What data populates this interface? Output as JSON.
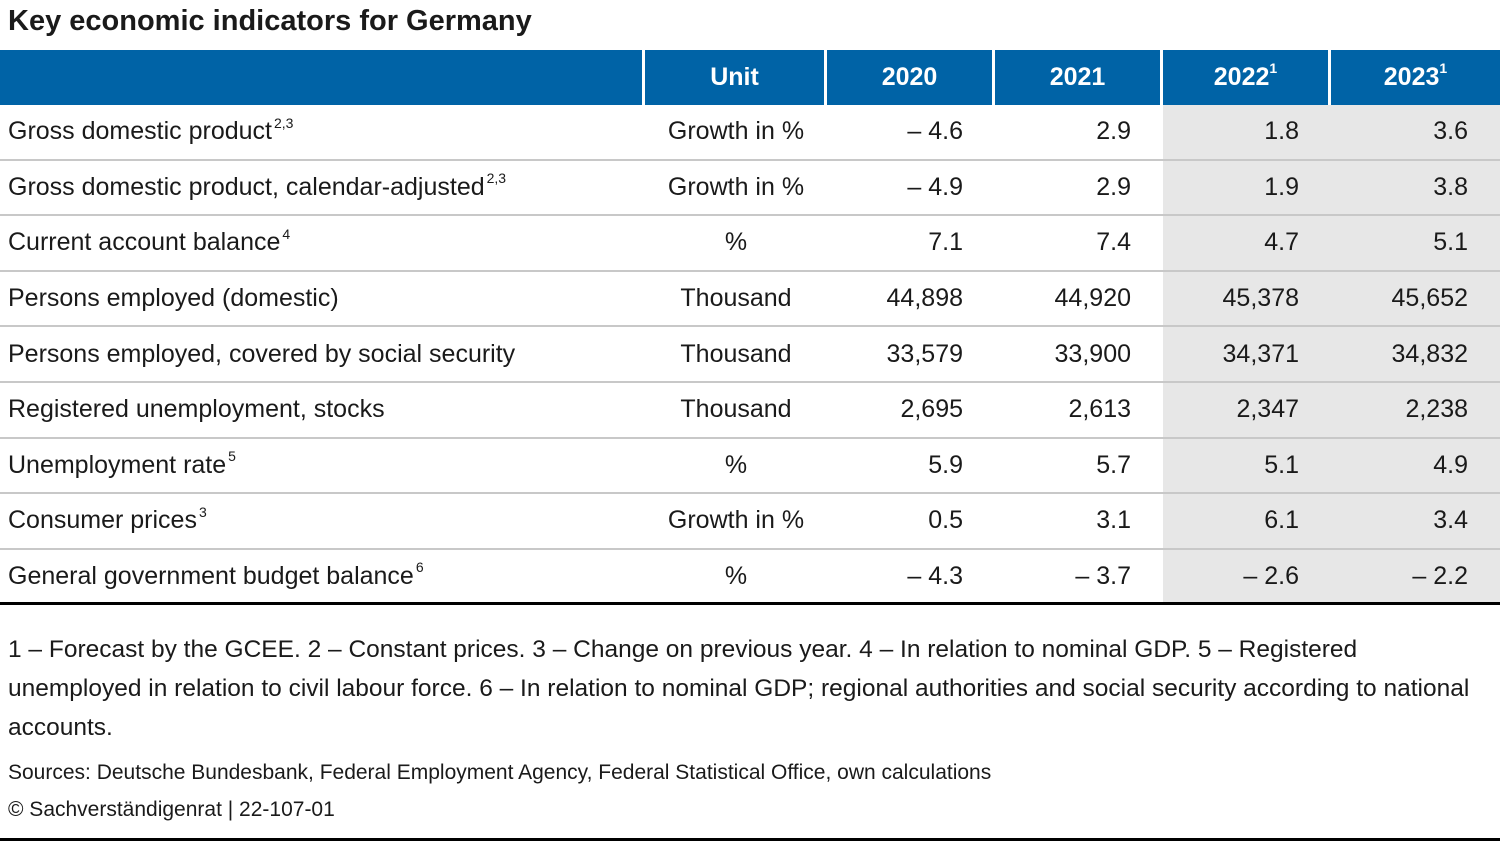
{
  "title": "Key economic indicators for Germany",
  "header": {
    "blank": "",
    "unit": "Unit",
    "years": [
      {
        "label": "2020",
        "footnote": ""
      },
      {
        "label": "2021",
        "footnote": ""
      },
      {
        "label": "2022",
        "footnote": "1"
      },
      {
        "label": "2023",
        "footnote": "1"
      }
    ]
  },
  "rows": [
    {
      "label": "Gross domestic product",
      "footnote": "2,3",
      "unit": "Growth in %",
      "values": [
        "– 4.6",
        "2.9",
        "1.8",
        "3.6"
      ]
    },
    {
      "label": "Gross domestic product, calendar-adjusted",
      "footnote": "2,3",
      "unit": "Growth in %",
      "values": [
        "– 4.9",
        "2.9",
        "1.9",
        "3.8"
      ]
    },
    {
      "label": "Current account balance",
      "footnote": "4",
      "unit": "%",
      "values": [
        "7.1",
        "7.4",
        "4.7",
        "5.1"
      ]
    },
    {
      "label": "Persons employed (domestic)",
      "footnote": "",
      "unit": "Thousand",
      "values": [
        "44,898",
        "44,920",
        "45,378",
        "45,652"
      ]
    },
    {
      "label": "Persons employed, covered by social security",
      "footnote": "",
      "unit": "Thousand",
      "values": [
        "33,579",
        "33,900",
        "34,371",
        "34,832"
      ]
    },
    {
      "label": "Registered unemployment, stocks",
      "footnote": "",
      "unit": "Thousand",
      "values": [
        "2,695",
        "2,613",
        "2,347",
        "2,238"
      ]
    },
    {
      "label": "Unemployment rate",
      "footnote": "5",
      "unit": "%",
      "values": [
        "5.9",
        "5.7",
        "5.1",
        "4.9"
      ]
    },
    {
      "label": "Consumer prices",
      "footnote": "3",
      "unit": "Growth in %",
      "values": [
        "0.5",
        "3.1",
        "6.1",
        "3.4"
      ]
    },
    {
      "label": "General government budget balance",
      "footnote": "6",
      "unit": "%",
      "values": [
        "– 4.3",
        "– 3.7",
        "– 2.6",
        "– 2.2"
      ]
    }
  ],
  "notes": "1 – Forecast by the GCEE.  2 – Constant prices.  3 – Change on previous year.  4 – In relation to nominal GDP.  5 – Registered unemployed in relation to civil labour force.  6 – In relation to nominal GDP; regional authorities and social security according to national accounts.",
  "sources": "Sources: Deutsche Bundesbank, Federal Employment Agency, Federal Statistical Office, own calculations",
  "copyright": "© Sachverständigenrat | 22-107-01",
  "colors": {
    "header_bg": "#0063a6",
    "forecast_bg": "#e7e7e7",
    "header_text": "#ffffff"
  },
  "chart_data": {
    "type": "table",
    "title": "Key economic indicators for Germany",
    "columns": [
      "",
      "Unit",
      "2020",
      "2021",
      "2022",
      "2023"
    ],
    "rows": [
      [
        "Gross domestic product",
        "Growth in %",
        -4.6,
        2.9,
        1.8,
        3.6
      ],
      [
        "Gross domestic product, calendar-adjusted",
        "Growth in %",
        -4.9,
        2.9,
        1.9,
        3.8
      ],
      [
        "Current account balance",
        "%",
        7.1,
        7.4,
        4.7,
        5.1
      ],
      [
        "Persons employed (domestic)",
        "Thousand",
        44898,
        44920,
        45378,
        45652
      ],
      [
        "Persons employed, covered by social security",
        "Thousand",
        33579,
        33900,
        34371,
        34832
      ],
      [
        "Registered unemployment, stocks",
        "Thousand",
        2695,
        2613,
        2347,
        2238
      ],
      [
        "Unemployment rate",
        "%",
        5.9,
        5.7,
        5.1,
        4.9
      ],
      [
        "Consumer prices",
        "Growth in %",
        0.5,
        3.1,
        6.1,
        3.4
      ],
      [
        "General government budget balance",
        "%",
        -4.3,
        -3.7,
        -2.6,
        -2.2
      ]
    ],
    "forecast_columns": [
      "2022",
      "2023"
    ]
  }
}
